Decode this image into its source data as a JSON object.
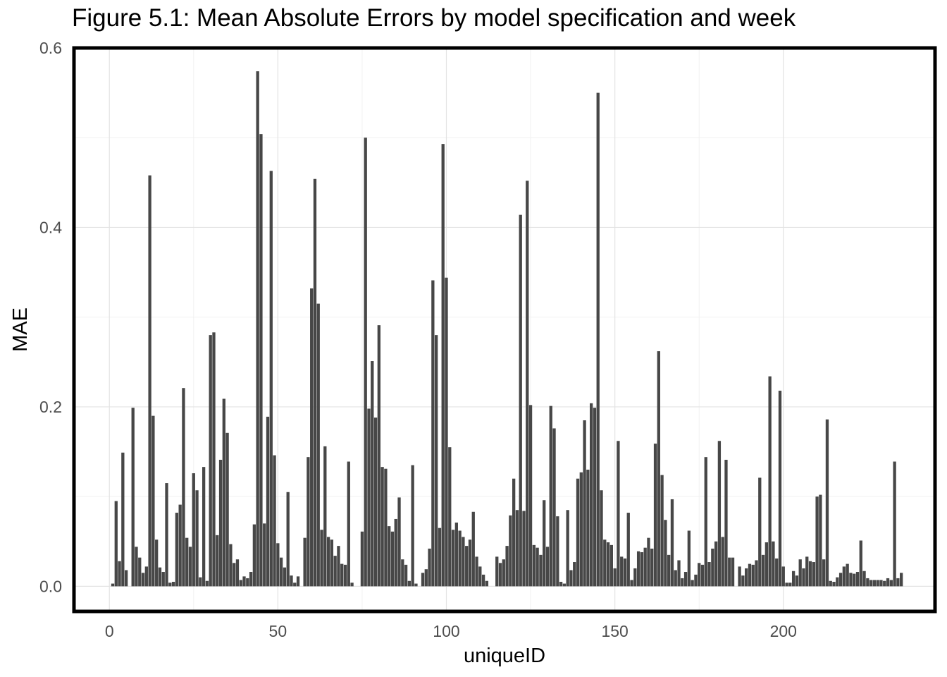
{
  "chart_data": {
    "type": "bar",
    "title": "Figure 5.1: Mean Absolute Errors by model specification and week",
    "xlabel": "uniqueID",
    "ylabel": "MAE",
    "xlim": [
      -10.5,
      245
    ],
    "ylim": [
      -0.028,
      0.6
    ],
    "xticks": [
      0,
      50,
      100,
      150,
      200
    ],
    "yticks": [
      0.0,
      0.2,
      0.4,
      0.6
    ],
    "xtick_labels": [
      "0",
      "50",
      "100",
      "150",
      "200"
    ],
    "ytick_labels": [
      "0.0",
      "0.2",
      "0.4",
      "0.6"
    ],
    "grid": true,
    "bar_color": "#474747",
    "values": [
      0.003,
      0.095,
      0.028,
      0.149,
      0.018,
      0,
      0.199,
      0.044,
      0.032,
      0.015,
      0.022,
      0.458,
      0.19,
      0.052,
      0.021,
      0.016,
      0.115,
      0.004,
      0.005,
      0.082,
      0.091,
      0.221,
      0.054,
      0.044,
      0.126,
      0.107,
      0.01,
      0.133,
      0.006,
      0.28,
      0.283,
      0.057,
      0.141,
      0.209,
      0.171,
      0.047,
      0.026,
      0.03,
      0.007,
      0.011,
      0.009,
      0.016,
      0.069,
      0.574,
      0.504,
      0.07,
      0.189,
      0.463,
      0.146,
      0.048,
      0.032,
      0.021,
      0.105,
      0.012,
      0.004,
      0.011,
      0,
      0.054,
      0.144,
      0.332,
      0.454,
      0.315,
      0.063,
      0.156,
      0.055,
      0.052,
      0.034,
      0.045,
      0.025,
      0.024,
      0.139,
      0.004,
      0,
      0,
      0.061,
      0.5,
      0.198,
      0.251,
      0.188,
      0.291,
      0.133,
      0.131,
      0.067,
      0.061,
      0.075,
      0.099,
      0.03,
      0.024,
      0.006,
      0.135,
      0.003,
      0,
      0.015,
      0.019,
      0.042,
      0.341,
      0.28,
      0.065,
      0.493,
      0.344,
      0.155,
      0.063,
      0.071,
      0.062,
      0.055,
      0.045,
      0.052,
      0.083,
      0.033,
      0.022,
      0.013,
      0.006,
      0,
      0,
      0.033,
      0.026,
      0.03,
      0.045,
      0.079,
      0.12,
      0.085,
      0.414,
      0.084,
      0.452,
      0.202,
      0.046,
      0.043,
      0.035,
      0.096,
      0.044,
      0.201,
      0.176,
      0.078,
      0.005,
      0.003,
      0.085,
      0.018,
      0.027,
      0.12,
      0.127,
      0.185,
      0.13,
      0.204,
      0.199,
      0.55,
      0.107,
      0.052,
      0.049,
      0.046,
      0.02,
      0.162,
      0.033,
      0.031,
      0.082,
      0.007,
      0.02,
      0.039,
      0.038,
      0.043,
      0.054,
      0.042,
      0.159,
      0.262,
      0.124,
      0.074,
      0.035,
      0.097,
      0.018,
      0.029,
      0.009,
      0.016,
      0.062,
      0.007,
      0.013,
      0.026,
      0.024,
      0.144,
      0.027,
      0.042,
      0.05,
      0.162,
      0.055,
      0.141,
      0.032,
      0.032,
      0,
      0.022,
      0.012,
      0.02,
      0.025,
      0.024,
      0.029,
      0.121,
      0.035,
      0.049,
      0.234,
      0.05,
      0.031,
      0.218,
      0.022,
      0.004,
      0.004,
      0.017,
      0.012,
      0.03,
      0.02,
      0.033,
      0.028,
      0.027,
      0.1,
      0.102,
      0.03,
      0.186,
      0.006,
      0.005,
      0.01,
      0.015,
      0.022,
      0.025,
      0.015,
      0.014,
      0.016,
      0.051,
      0.017,
      0.009,
      0.007,
      0.007,
      0.007,
      0.007,
      0.006,
      0.009,
      0.007,
      0.139,
      0.009,
      0.015
    ]
  }
}
